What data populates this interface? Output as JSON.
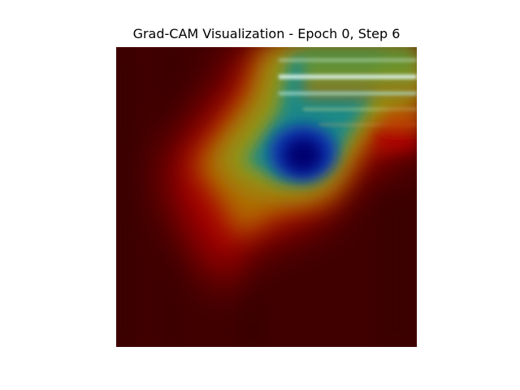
{
  "figure": {
    "title": "Grad-CAM Visualization - Epoch 0, Step 6",
    "background_color": "#ffffff"
  },
  "image": {
    "kind": "grad-cam heatmap overlay",
    "colormap": "jet",
    "colormap_stops": [
      "#000080",
      "#0000ff",
      "#00ffff",
      "#ffff00",
      "#ff0000",
      "#800000"
    ],
    "dominant_color": "#400000",
    "axes_visible": false
  }
}
